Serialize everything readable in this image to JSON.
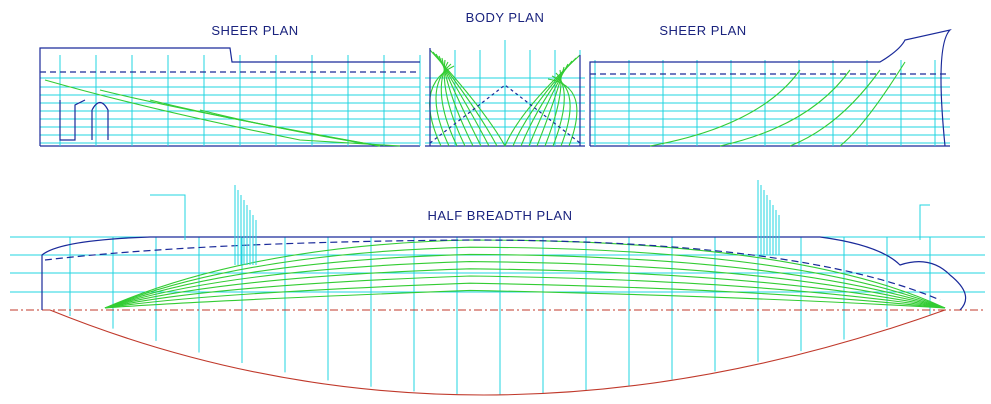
{
  "drawing": {
    "sheer_plan_left": "SHEER PLAN",
    "body_plan": "BODY PLAN",
    "sheer_plan_right": "SHEER PLAN",
    "half_breadth_plan": "HALF BREADTH PLAN"
  }
}
